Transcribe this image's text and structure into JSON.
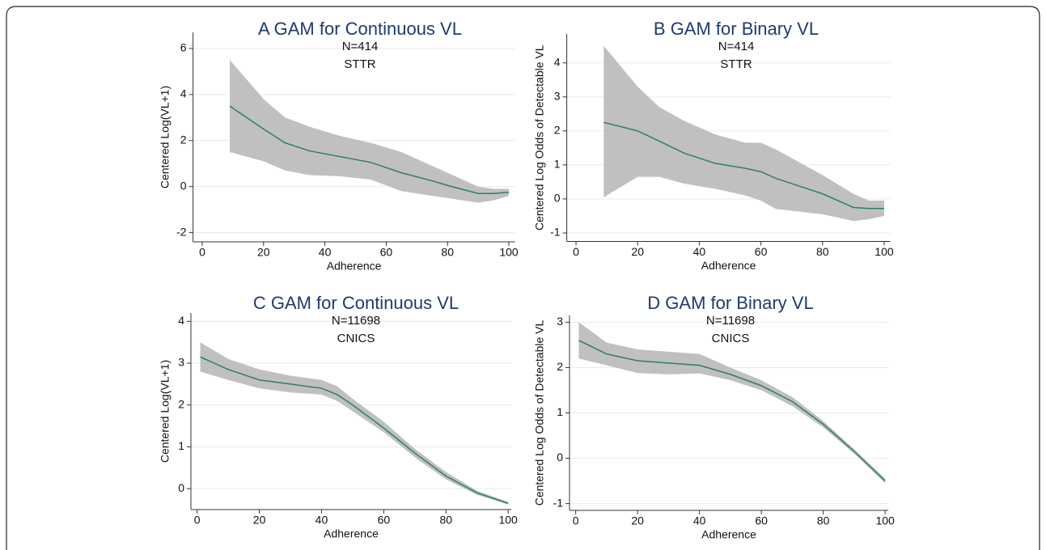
{
  "chart_data": [
    {
      "type": "line",
      "title": "A GAM for Continuous VL",
      "annotations": [
        "N=414",
        "STTR"
      ],
      "x_label": "Adherence",
      "y_label": "Centered Log(VL+1)",
      "x": [
        9,
        20,
        27,
        35,
        45,
        55,
        65,
        75,
        80,
        90,
        95,
        100
      ],
      "values": [
        3.5,
        2.5,
        1.9,
        1.55,
        1.3,
        1.05,
        0.6,
        0.25,
        0.05,
        -0.3,
        -0.3,
        -0.25
      ],
      "lower": [
        1.5,
        1.1,
        0.7,
        0.5,
        0.45,
        0.3,
        -0.2,
        -0.4,
        -0.5,
        -0.7,
        -0.6,
        -0.4
      ],
      "upper": [
        5.5,
        3.8,
        3.0,
        2.6,
        2.2,
        1.9,
        1.5,
        0.9,
        0.6,
        0.0,
        -0.1,
        -0.1
      ],
      "color": "#2e7d6b",
      "band_color": "#c0c0c0",
      "xlim": [
        -3,
        102
      ],
      "xticks": [
        0,
        20,
        40,
        60,
        80,
        100
      ],
      "ylim": [
        -2.4,
        6.7
      ],
      "yticks": [
        -2,
        0,
        2,
        4,
        6
      ],
      "grid": true
    },
    {
      "type": "line",
      "title": "B GAM for Binary VL",
      "annotations": [
        "N=414",
        "STTR"
      ],
      "x_label": "Adherence",
      "y_label": "Centered Log Odds of Detectable VL",
      "x": [
        9,
        20,
        27,
        35,
        45,
        55,
        60,
        65,
        75,
        80,
        90,
        95,
        100
      ],
      "values": [
        2.25,
        2.0,
        1.7,
        1.35,
        1.05,
        0.9,
        0.8,
        0.6,
        0.3,
        0.15,
        -0.25,
        -0.28,
        -0.28
      ],
      "lower": [
        0.05,
        0.65,
        0.65,
        0.45,
        0.3,
        0.1,
        -0.05,
        -0.3,
        -0.4,
        -0.45,
        -0.65,
        -0.6,
        -0.5
      ],
      "upper": [
        4.5,
        3.3,
        2.7,
        2.3,
        1.9,
        1.65,
        1.65,
        1.45,
        0.95,
        0.7,
        0.15,
        -0.05,
        -0.05
      ],
      "color": "#2e7d6b",
      "band_color": "#c0c0c0",
      "xlim": [
        -3,
        102
      ],
      "xticks": [
        0,
        20,
        40,
        60,
        80,
        100
      ],
      "ylim": [
        -1.25,
        4.85
      ],
      "yticks": [
        -1,
        0,
        1,
        2,
        3,
        4
      ],
      "grid": true
    },
    {
      "type": "line",
      "title": "C GAM for Continuous VL",
      "annotations": [
        "N=11698",
        "CNICS"
      ],
      "x_label": "Adherence",
      "y_label": "Centered Log(VL+1)",
      "x": [
        1,
        10,
        20,
        30,
        40,
        45,
        50,
        60,
        70,
        80,
        90,
        100
      ],
      "values": [
        3.15,
        2.85,
        2.6,
        2.5,
        2.4,
        2.25,
        2.0,
        1.45,
        0.85,
        0.3,
        -0.1,
        -0.35
      ],
      "lower": [
        2.8,
        2.6,
        2.4,
        2.3,
        2.25,
        2.1,
        1.85,
        1.35,
        0.75,
        0.22,
        -0.15,
        -0.38
      ],
      "upper": [
        3.5,
        3.1,
        2.85,
        2.7,
        2.6,
        2.45,
        2.15,
        1.6,
        0.95,
        0.4,
        -0.05,
        -0.32
      ],
      "color": "#2e7d6b",
      "band_color": "#c0c0c0",
      "xlim": [
        -2,
        101
      ],
      "xticks": [
        0,
        20,
        40,
        60,
        80,
        100
      ],
      "ylim": [
        -0.5,
        4.2
      ],
      "yticks": [
        0,
        1,
        2,
        3,
        4
      ],
      "grid": true
    },
    {
      "type": "line",
      "title": "D GAM for Binary VL",
      "annotations": [
        "N=11698",
        "CNICS"
      ],
      "x_label": "Adherence",
      "y_label": "Centered Log Odds of Detectable VL",
      "x": [
        1,
        10,
        20,
        30,
        40,
        50,
        60,
        70,
        80,
        90,
        100
      ],
      "values": [
        2.6,
        2.3,
        2.15,
        2.1,
        2.05,
        1.85,
        1.6,
        1.25,
        0.75,
        0.15,
        -0.5
      ],
      "lower": [
        2.2,
        2.05,
        1.88,
        1.85,
        1.87,
        1.72,
        1.5,
        1.15,
        0.68,
        0.1,
        -0.55
      ],
      "upper": [
        3.0,
        2.55,
        2.4,
        2.35,
        2.3,
        2.0,
        1.72,
        1.35,
        0.82,
        0.2,
        -0.45
      ],
      "color": "#2e7d6b",
      "band_color": "#c0c0c0",
      "xlim": [
        -2,
        101
      ],
      "xticks": [
        0,
        20,
        40,
        60,
        80,
        100
      ],
      "ylim": [
        -1.15,
        3.15
      ],
      "yticks": [
        -1,
        0,
        1,
        2,
        3
      ],
      "grid": true
    }
  ]
}
